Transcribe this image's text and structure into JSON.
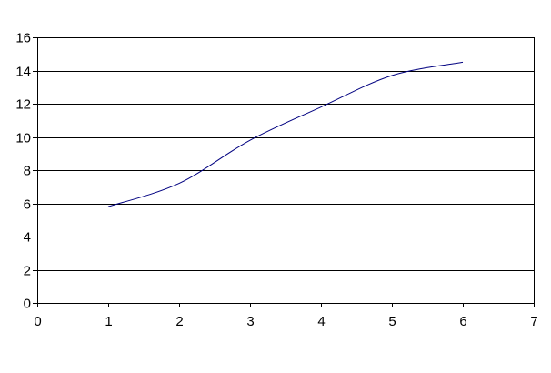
{
  "chart_data": {
    "type": "line",
    "title": "",
    "xlabel": "",
    "ylabel": "",
    "xlim": [
      0,
      7
    ],
    "ylim": [
      0,
      16
    ],
    "x_ticks": [
      "0",
      "1",
      "2",
      "3",
      "4",
      "5",
      "6",
      "7"
    ],
    "y_ticks": [
      "0",
      "2",
      "4",
      "6",
      "8",
      "10",
      "12",
      "14",
      "16"
    ],
    "grid": "horizontal",
    "legend": "none",
    "series": [
      {
        "color": "#000080",
        "smooth": true,
        "x": [
          1,
          2,
          3,
          4,
          5,
          6
        ],
        "y": [
          5.8,
          7.2,
          9.8,
          11.8,
          13.7,
          14.5
        ]
      }
    ]
  },
  "colors": {
    "gridline": "#000000",
    "axis": "#000000",
    "line": "#000080",
    "background": "#ffffff"
  }
}
